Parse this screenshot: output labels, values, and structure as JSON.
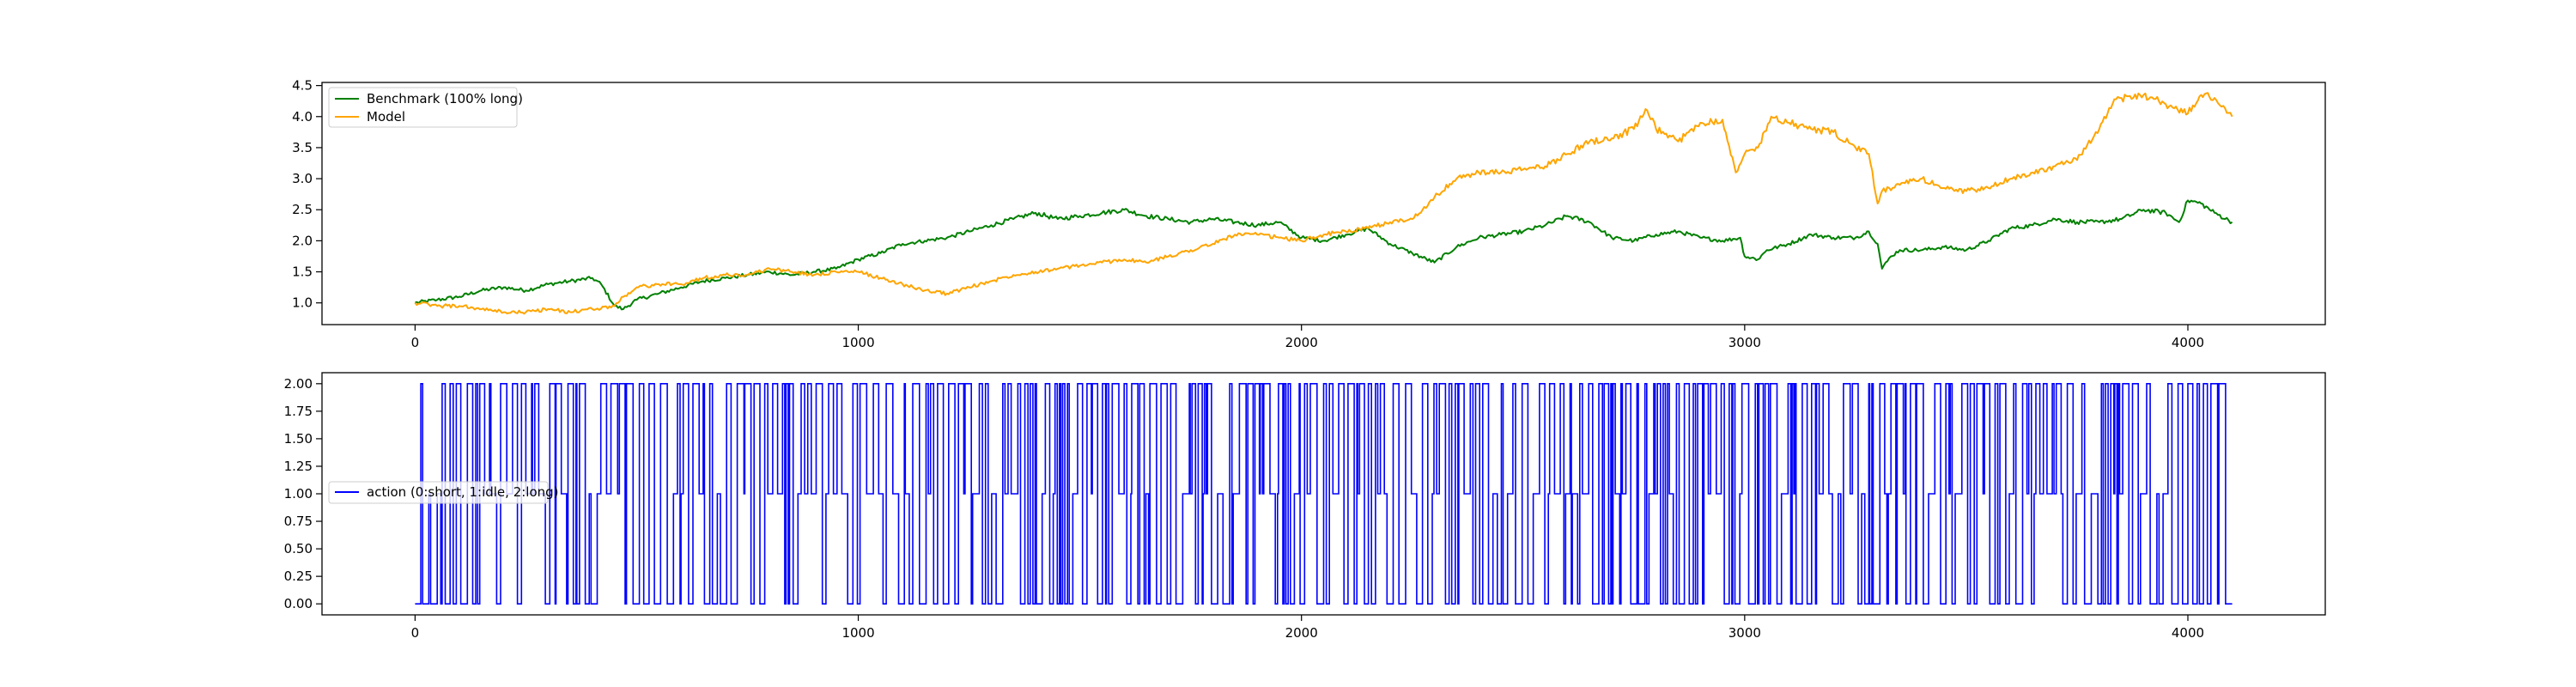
{
  "chart_data": [
    {
      "type": "line",
      "title": "",
      "xlabel": "",
      "ylabel": "",
      "xlim": [
        -210,
        4310
      ],
      "ylim": [
        0.65,
        4.55
      ],
      "grid": false,
      "legend_position": "upper-left",
      "xticks": [
        0,
        1000,
        2000,
        3000,
        4000
      ],
      "yticks": [
        1.0,
        1.5,
        2.0,
        2.5,
        3.0,
        3.5,
        4.0,
        4.5
      ],
      "xtick_labels": [
        "0",
        "1000",
        "2000",
        "3000",
        "4000"
      ],
      "ytick_labels": [
        "1.0",
        "1.5",
        "2.0",
        "2.5",
        "3.0",
        "3.5",
        "4.0",
        "4.5"
      ],
      "series": [
        {
          "name": "Benchmark (100% long)",
          "color": "#008000",
          "x": [
            0,
            50,
            100,
            150,
            200,
            250,
            300,
            350,
            400,
            420,
            450,
            470,
            500,
            550,
            600,
            650,
            700,
            750,
            800,
            850,
            900,
            950,
            1000,
            1050,
            1100,
            1150,
            1200,
            1250,
            1300,
            1350,
            1400,
            1450,
            1500,
            1550,
            1600,
            1650,
            1700,
            1750,
            1800,
            1850,
            1900,
            1950,
            2000,
            2050,
            2100,
            2150,
            2200,
            2250,
            2300,
            2350,
            2400,
            2450,
            2500,
            2550,
            2600,
            2650,
            2700,
            2750,
            2800,
            2850,
            2900,
            2950,
            2990,
            3000,
            3030,
            3050,
            3100,
            3150,
            3200,
            3250,
            3280,
            3300,
            3310,
            3330,
            3350,
            3400,
            3450,
            3500,
            3550,
            3600,
            3650,
            3700,
            3750,
            3800,
            3850,
            3900,
            3950,
            3980,
            4000,
            4030,
            4060,
            4100
          ],
          "y": [
            1.0,
            1.05,
            1.1,
            1.2,
            1.25,
            1.2,
            1.3,
            1.35,
            1.4,
            1.3,
            0.95,
            0.9,
            1.05,
            1.15,
            1.25,
            1.35,
            1.4,
            1.45,
            1.5,
            1.45,
            1.5,
            1.55,
            1.7,
            1.8,
            1.95,
            2.0,
            2.05,
            2.15,
            2.25,
            2.35,
            2.45,
            2.35,
            2.4,
            2.45,
            2.5,
            2.4,
            2.35,
            2.3,
            2.35,
            2.3,
            2.25,
            2.3,
            2.05,
            2.0,
            2.1,
            2.2,
            1.95,
            1.8,
            1.65,
            1.9,
            2.05,
            2.1,
            2.15,
            2.25,
            2.4,
            2.3,
            2.05,
            2.0,
            2.1,
            2.15,
            2.05,
            2.0,
            2.05,
            1.75,
            1.7,
            1.85,
            1.95,
            2.1,
            2.05,
            2.05,
            2.15,
            1.95,
            1.55,
            1.75,
            1.85,
            1.85,
            1.9,
            1.85,
            2.0,
            2.2,
            2.25,
            2.35,
            2.3,
            2.3,
            2.35,
            2.5,
            2.45,
            2.3,
            2.65,
            2.6,
            2.45,
            2.3
          ]
        },
        {
          "name": "Model",
          "color": "#FFA500",
          "x": [
            0,
            50,
            100,
            150,
            200,
            250,
            300,
            350,
            400,
            450,
            470,
            500,
            550,
            600,
            650,
            700,
            750,
            800,
            850,
            900,
            950,
            1000,
            1050,
            1100,
            1150,
            1200,
            1250,
            1300,
            1350,
            1400,
            1450,
            1500,
            1550,
            1600,
            1650,
            1700,
            1750,
            1800,
            1850,
            1900,
            1950,
            2000,
            2050,
            2100,
            2150,
            2200,
            2250,
            2300,
            2350,
            2400,
            2450,
            2500,
            2550,
            2600,
            2650,
            2700,
            2750,
            2780,
            2800,
            2850,
            2900,
            2950,
            2980,
            3000,
            3030,
            3060,
            3100,
            3150,
            3200,
            3250,
            3280,
            3300,
            3310,
            3350,
            3400,
            3450,
            3500,
            3550,
            3600,
            3650,
            3700,
            3750,
            3800,
            3830,
            3850,
            3900,
            3950,
            4000,
            4030,
            4060,
            4100
          ],
          "y": [
            1.0,
            0.95,
            0.95,
            0.9,
            0.85,
            0.85,
            0.9,
            0.85,
            0.9,
            0.95,
            1.1,
            1.25,
            1.3,
            1.3,
            1.4,
            1.45,
            1.45,
            1.55,
            1.5,
            1.45,
            1.5,
            1.5,
            1.4,
            1.3,
            1.2,
            1.15,
            1.25,
            1.35,
            1.45,
            1.5,
            1.55,
            1.6,
            1.65,
            1.7,
            1.65,
            1.75,
            1.85,
            1.95,
            2.1,
            2.1,
            2.05,
            2.0,
            2.1,
            2.15,
            2.2,
            2.3,
            2.35,
            2.7,
            3.0,
            3.1,
            3.1,
            3.15,
            3.2,
            3.4,
            3.6,
            3.65,
            3.8,
            4.1,
            3.8,
            3.6,
            3.9,
            3.95,
            3.1,
            3.4,
            3.5,
            4.0,
            3.9,
            3.8,
            3.75,
            3.5,
            3.4,
            2.6,
            2.8,
            2.9,
            3.0,
            2.85,
            2.8,
            2.85,
            3.0,
            3.1,
            3.2,
            3.3,
            3.8,
            4.2,
            4.3,
            4.35,
            4.2,
            4.05,
            4.35,
            4.3,
            4.0
          ]
        }
      ]
    },
    {
      "type": "line",
      "title": "",
      "xlabel": "",
      "ylabel": "",
      "xlim": [
        -210,
        4310
      ],
      "ylim": [
        -0.1,
        2.1
      ],
      "grid": false,
      "legend_position": "center-left",
      "xticks": [
        0,
        1000,
        2000,
        3000,
        4000
      ],
      "yticks": [
        0.0,
        0.25,
        0.5,
        0.75,
        1.0,
        1.25,
        1.5,
        1.75,
        2.0
      ],
      "xtick_labels": [
        "0",
        "1000",
        "2000",
        "3000",
        "4000"
      ],
      "ytick_labels": [
        "0.00",
        "0.25",
        "0.50",
        "0.75",
        "1.00",
        "1.25",
        "1.50",
        "1.75",
        "2.00"
      ],
      "series": [
        {
          "name": "action (0:short, 1:idle, 2:long)",
          "color": "#0000FF",
          "n_points": 4100,
          "values": [
            0,
            1,
            2
          ],
          "first_value": 0,
          "last_value": 0,
          "pattern": "step signal switching between 0, 1 and 2 at nearly every step across the whole range"
        }
      ]
    }
  ]
}
